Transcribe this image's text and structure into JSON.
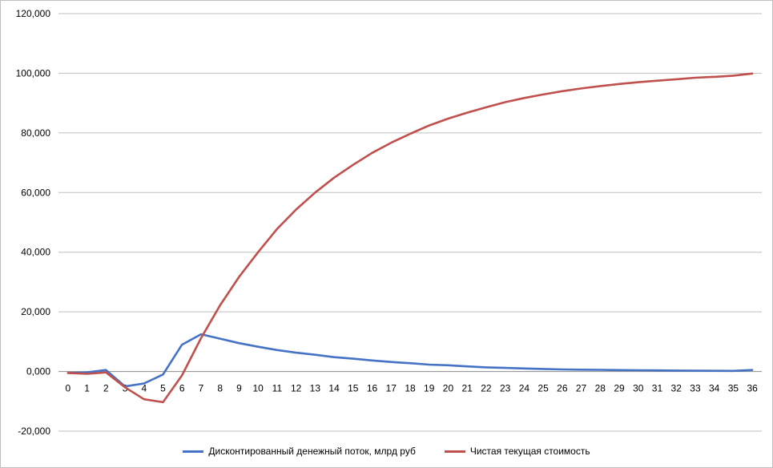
{
  "chart_data": {
    "type": "line",
    "x": [
      0,
      1,
      2,
      3,
      4,
      5,
      6,
      7,
      8,
      9,
      10,
      11,
      12,
      13,
      14,
      15,
      16,
      17,
      18,
      19,
      20,
      21,
      22,
      23,
      24,
      25,
      26,
      27,
      28,
      29,
      30,
      31,
      32,
      33,
      34,
      35,
      36
    ],
    "series": [
      {
        "name": "Дисконтированный денежный поток, млрд руб",
        "color": "#4472c4",
        "values": [
          -500,
          -300,
          500,
          -5000,
          -4000,
          -1000,
          9000,
          12500,
          11000,
          9500,
          8300,
          7200,
          6300,
          5600,
          4800,
          4300,
          3700,
          3200,
          2800,
          2300,
          2100,
          1700,
          1400,
          1200,
          1000,
          850,
          700,
          600,
          550,
          480,
          420,
          360,
          310,
          270,
          230,
          200,
          500
        ]
      },
      {
        "name": "Чистая текущая стоимость",
        "color": "#c0504d",
        "values": [
          -500,
          -800,
          -300,
          -5300,
          -9300,
          -10300,
          -1300,
          11200,
          22200,
          31700,
          40000,
          47800,
          54300,
          60000,
          65000,
          69300,
          73300,
          76700,
          79700,
          82500,
          84800,
          86800,
          88600,
          90300,
          91700,
          92900,
          94000,
          94900,
          95700,
          96400,
          97000,
          97500,
          98000,
          98500,
          98800,
          99200,
          99900
        ]
      }
    ],
    "y_ticks": [
      "120,000",
      "100,000",
      "80,000",
      "60,000",
      "40,000",
      "20,000",
      "0,000",
      "-20,000"
    ],
    "ylim": [
      -20000,
      120000
    ],
    "grid": true,
    "legend_position": "bottom",
    "title": "",
    "xlabel": "",
    "ylabel": ""
  }
}
